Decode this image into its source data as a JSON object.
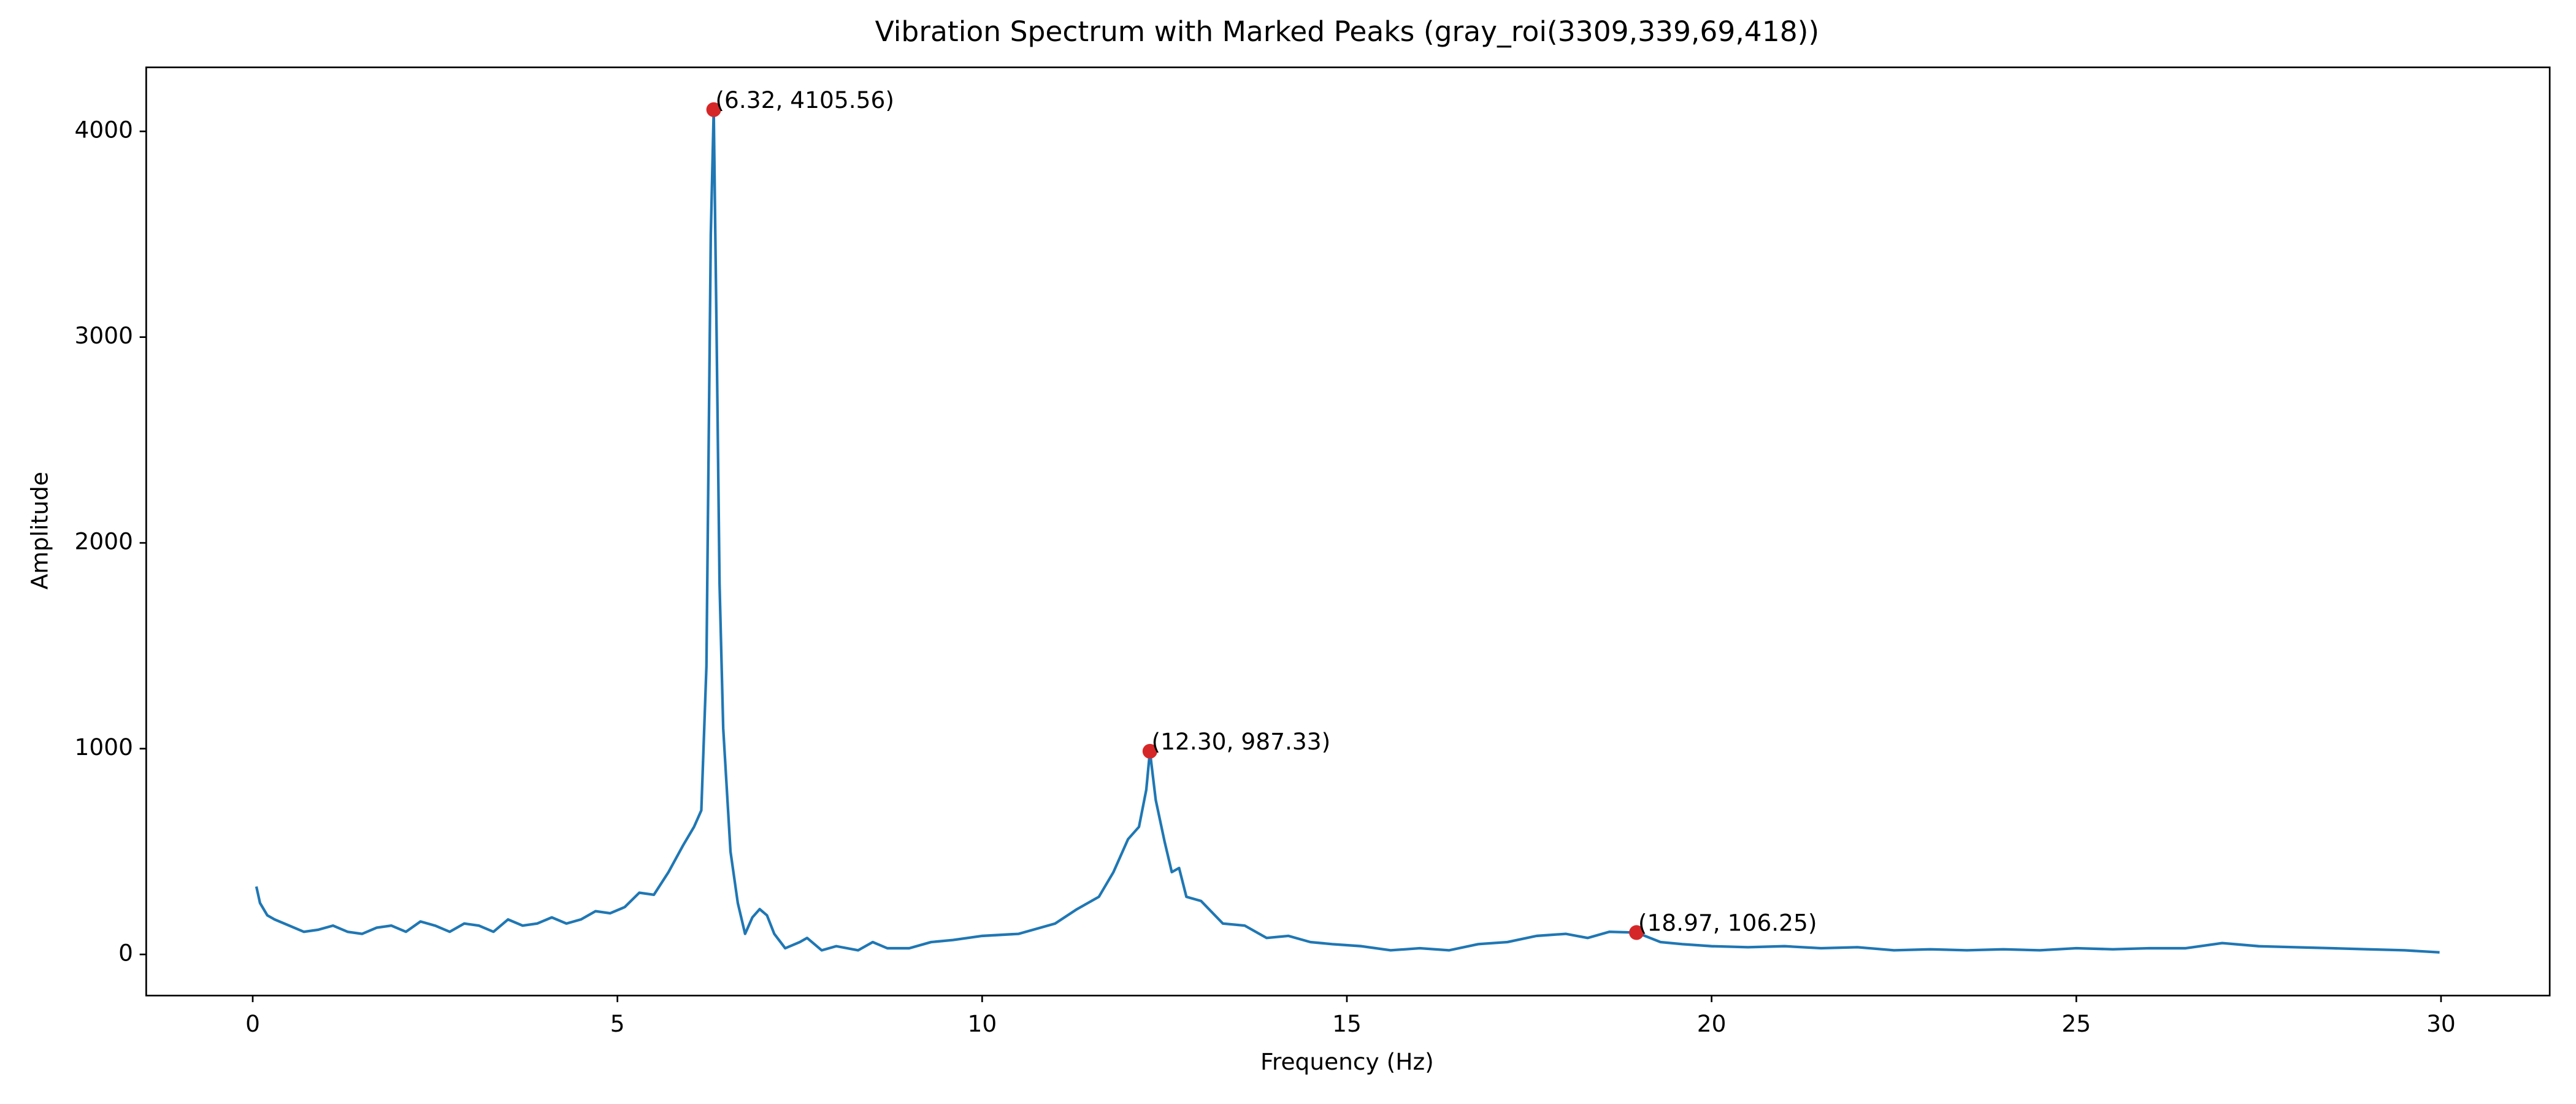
{
  "chart_data": {
    "type": "line",
    "title": "Vibration Spectrum with Marked Peaks (gray_roi(3309,339,69,418))",
    "x_label": "Frequency (Hz)",
    "y_label": "Amplitude",
    "xlim": [
      -1.46,
      31.49
    ],
    "ylim": [
      -200,
      4311
    ],
    "xticks": [
      0,
      5,
      10,
      15,
      20,
      25,
      30
    ],
    "yticks": [
      0,
      1000,
      2000,
      3000,
      4000
    ],
    "grid": false,
    "x": [
      0.05,
      0.1,
      0.2,
      0.3,
      0.5,
      0.7,
      0.9,
      1.1,
      1.3,
      1.5,
      1.7,
      1.9,
      2.1,
      2.3,
      2.5,
      2.7,
      2.9,
      3.1,
      3.3,
      3.5,
      3.7,
      3.9,
      4.1,
      4.3,
      4.5,
      4.7,
      4.9,
      5.1,
      5.3,
      5.5,
      5.7,
      5.9,
      6.05,
      6.15,
      6.22,
      6.28,
      6.32,
      6.36,
      6.4,
      6.45,
      6.55,
      6.65,
      6.75,
      6.85,
      6.95,
      7.05,
      7.15,
      7.3,
      7.5,
      7.6,
      7.8,
      8.0,
      8.3,
      8.5,
      8.7,
      9.0,
      9.3,
      9.6,
      10.0,
      10.5,
      11.0,
      11.3,
      11.6,
      11.8,
      12.0,
      12.15,
      12.25,
      12.3,
      12.38,
      12.5,
      12.6,
      12.7,
      12.8,
      13.0,
      13.3,
      13.6,
      13.9,
      14.2,
      14.5,
      14.8,
      15.2,
      15.6,
      16.0,
      16.4,
      16.8,
      17.2,
      17.6,
      18.0,
      18.3,
      18.6,
      18.97,
      19.3,
      19.6,
      20.0,
      20.5,
      21.0,
      21.5,
      22.0,
      22.5,
      23.0,
      23.5,
      24.0,
      24.5,
      25.0,
      25.5,
      26.0,
      26.5,
      27.0,
      27.5,
      28.0,
      28.5,
      29.0,
      29.5,
      29.98
    ],
    "series": [
      {
        "color": "#1f77b4",
        "values": [
          330,
          250,
          190,
          170,
          140,
          110,
          120,
          140,
          110,
          100,
          130,
          140,
          110,
          160,
          140,
          110,
          150,
          140,
          110,
          170,
          140,
          150,
          180,
          150,
          170,
          210,
          200,
          230,
          300,
          290,
          400,
          530,
          620,
          700,
          1400,
          3500,
          4105.56,
          3000,
          1800,
          1100,
          500,
          250,
          100,
          180,
          220,
          190,
          100,
          30,
          60,
          80,
          20,
          40,
          20,
          60,
          30,
          30,
          60,
          70,
          90,
          100,
          150,
          220,
          280,
          400,
          560,
          620,
          800,
          987.33,
          750,
          550,
          400,
          420,
          280,
          260,
          150,
          140,
          80,
          90,
          60,
          50,
          40,
          20,
          30,
          20,
          50,
          60,
          90,
          100,
          80,
          110,
          106.25,
          60,
          50,
          40,
          35,
          40,
          30,
          35,
          20,
          25,
          20,
          25,
          20,
          30,
          25,
          30,
          30,
          55,
          40,
          35,
          30,
          25,
          20,
          10
        ]
      }
    ],
    "peaks": {
      "color": "#d62728",
      "x": [
        6.32,
        12.3,
        18.97
      ],
      "values": [
        4105.56,
        987.33,
        106.25
      ],
      "labels": [
        "(6.32, 4105.56)",
        "(12.30, 987.33)",
        "(18.97, 106.25)"
      ]
    }
  }
}
